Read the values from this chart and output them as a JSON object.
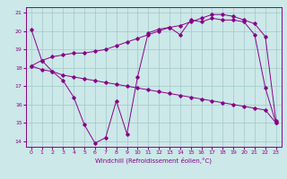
{
  "xlabel": "Windchill (Refroidissement éolien,°C)",
  "bg_color": "#cce8e8",
  "grid_color": "#a0c8c8",
  "line_color": "#880088",
  "xlim": [
    -0.5,
    23.5
  ],
  "ylim": [
    13.7,
    21.3
  ],
  "yticks": [
    14,
    15,
    16,
    17,
    18,
    19,
    20,
    21
  ],
  "xticks": [
    0,
    1,
    2,
    3,
    4,
    5,
    6,
    7,
    8,
    9,
    10,
    11,
    12,
    13,
    14,
    15,
    16,
    17,
    18,
    19,
    20,
    21,
    22,
    23
  ],
  "line1_x": [
    0,
    1,
    2,
    3,
    4,
    5,
    6,
    7,
    8,
    9,
    10,
    11,
    12,
    13,
    14,
    15,
    16,
    17,
    18,
    19,
    20,
    21,
    22,
    23
  ],
  "line1_y": [
    20.1,
    18.4,
    17.8,
    17.3,
    16.4,
    14.9,
    13.9,
    14.2,
    16.2,
    14.4,
    17.5,
    19.9,
    20.1,
    20.2,
    19.8,
    20.6,
    20.5,
    20.7,
    20.6,
    20.6,
    20.5,
    19.8,
    16.9,
    15.0
  ],
  "line2_x": [
    0,
    1,
    2,
    3,
    4,
    5,
    6,
    7,
    8,
    9,
    10,
    11,
    12,
    13,
    14,
    15,
    16,
    17,
    18,
    19,
    20,
    21,
    22,
    23
  ],
  "line2_y": [
    18.1,
    17.9,
    17.8,
    17.6,
    17.5,
    17.4,
    17.3,
    17.2,
    17.1,
    17.0,
    16.9,
    16.8,
    16.7,
    16.6,
    16.5,
    16.4,
    16.3,
    16.2,
    16.1,
    16.0,
    15.9,
    15.8,
    15.7,
    15.0
  ],
  "line3_x": [
    0,
    1,
    2,
    3,
    4,
    5,
    6,
    7,
    8,
    9,
    10,
    11,
    12,
    13,
    14,
    15,
    16,
    17,
    18,
    19,
    20,
    21,
    22,
    23
  ],
  "line3_y": [
    18.1,
    18.4,
    18.6,
    18.7,
    18.8,
    18.8,
    18.9,
    19.0,
    19.2,
    19.4,
    19.6,
    19.8,
    20.0,
    20.2,
    20.3,
    20.5,
    20.7,
    20.9,
    20.9,
    20.8,
    20.6,
    20.4,
    19.7,
    15.1
  ]
}
